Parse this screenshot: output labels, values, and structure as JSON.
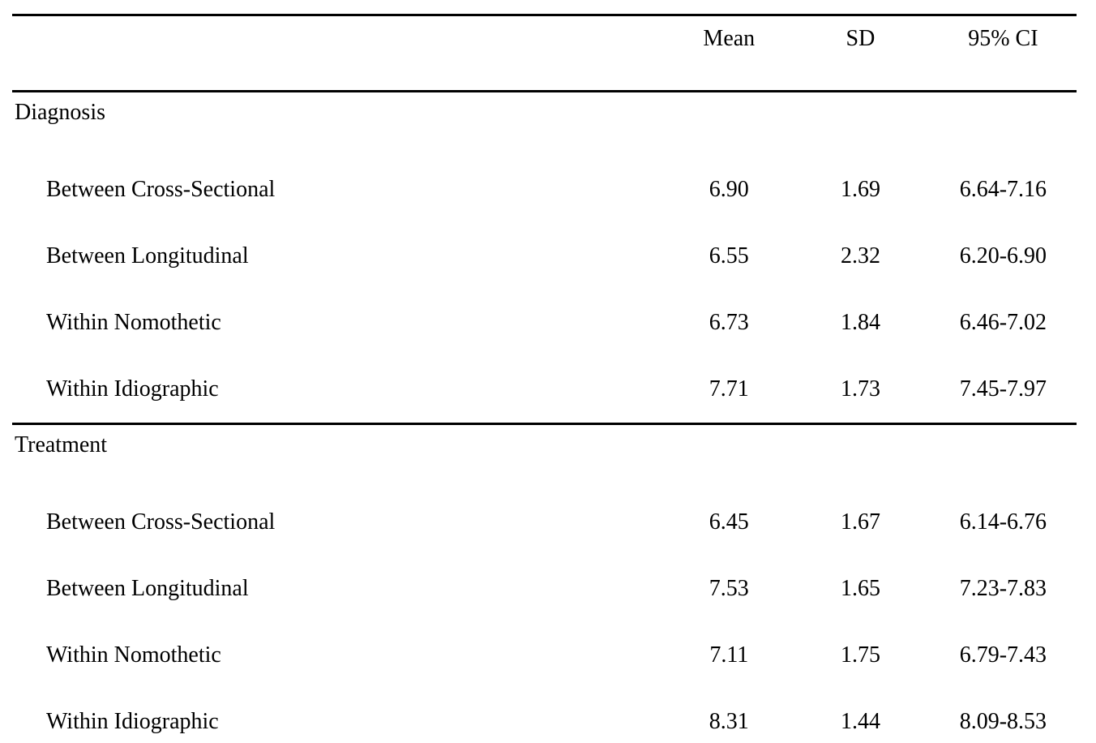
{
  "page": {
    "background_color": "#ffffff",
    "text_color": "#000000"
  },
  "table": {
    "columns": {
      "stub": "",
      "mean": "Mean",
      "sd": "SD",
      "ci": "95% CI"
    },
    "sections": [
      {
        "label": "Diagnosis",
        "rows": [
          {
            "label": "Between Cross-Sectional",
            "mean": "6.90",
            "sd": "1.69",
            "ci": "6.64-7.16"
          },
          {
            "label": "Between Longitudinal",
            "mean": "6.55",
            "sd": "2.32",
            "ci": "6.20-6.90"
          },
          {
            "label": "Within Nomothetic",
            "mean": "6.73",
            "sd": "1.84",
            "ci": "6.46-7.02"
          },
          {
            "label": "Within Idiographic",
            "mean": "7.71",
            "sd": "1.73",
            "ci": "7.45-7.97"
          }
        ]
      },
      {
        "label": "Treatment",
        "rows": [
          {
            "label": "Between Cross-Sectional",
            "mean": "6.45",
            "sd": "1.67",
            "ci": "6.14-6.76"
          },
          {
            "label": "Between Longitudinal",
            "mean": "7.53",
            "sd": "1.65",
            "ci": "7.23-7.83"
          },
          {
            "label": "Within Nomothetic",
            "mean": "7.11",
            "sd": "1.75",
            "ci": "6.79-7.43"
          },
          {
            "label": "Within Idiographic",
            "mean": "8.31",
            "sd": "1.44",
            "ci": "8.09-8.53"
          }
        ]
      }
    ]
  }
}
